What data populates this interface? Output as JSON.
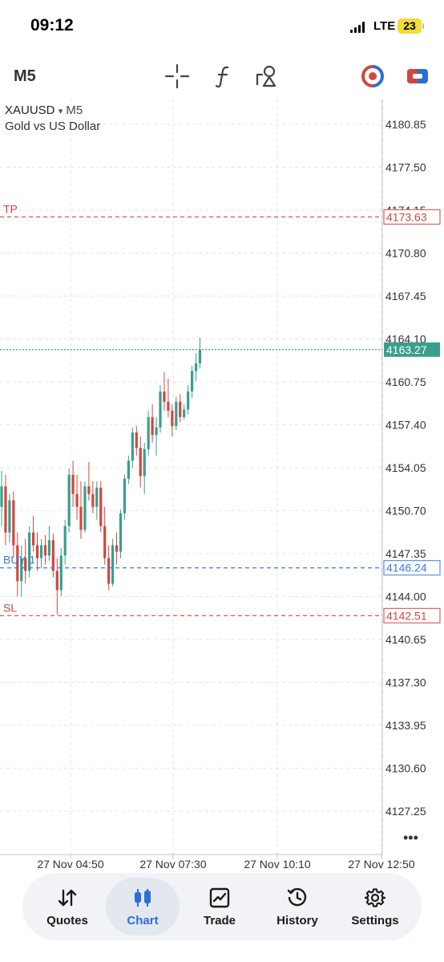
{
  "status_bar": {
    "time": "09:12",
    "network": "LTE",
    "battery": "23"
  },
  "toolbar": {
    "timeframe": "M5",
    "icons": [
      "crosshair-icon",
      "indicators-f-icon",
      "objects-icon",
      "one-click-trading-icon",
      "order-icon"
    ]
  },
  "symbol": {
    "ticker": "XAUUSD",
    "dropdown_glyph": "▾",
    "timeframe": "M5",
    "description": "Gold vs US Dollar"
  },
  "chart_data": {
    "type": "candlestick",
    "symbol": "XAUUSD",
    "timeframe": "M5",
    "y_ticks": [
      "4180.85",
      "4177.50",
      "4174.15",
      "4170.80",
      "4167.45",
      "4164.10",
      "4160.75",
      "4157.40",
      "4154.05",
      "4150.70",
      "4147.35",
      "4144.00",
      "4140.65",
      "4137.30",
      "4133.95",
      "4130.60",
      "4127.25"
    ],
    "x_ticks": [
      "27 Nov 04:50",
      "27 Nov 07:30",
      "27 Nov 10:10",
      "27 Nov 12:50"
    ],
    "ylim": [
      4125.5,
      4183.0
    ],
    "grid": true,
    "levels": [
      {
        "label": "TP",
        "price": 4173.63,
        "price_text": "4173.63",
        "color": "#d0473f"
      },
      {
        "label": "BUY 1",
        "price": 4146.24,
        "price_text": "4146.24",
        "color": "#3b7bd8"
      },
      {
        "label": "SL",
        "price": 4142.51,
        "price_text": "4142.51",
        "color": "#d0473f"
      }
    ],
    "current_price": {
      "value": 4163.27,
      "text": "4163.27",
      "color": "#3a9e8c"
    },
    "candles": [
      {
        "o": 4151.0,
        "h": 4153.8,
        "l": 4149.5,
        "c": 4152.6
      },
      {
        "o": 4152.6,
        "h": 4153.5,
        "l": 4148.0,
        "c": 4149.0
      },
      {
        "o": 4149.0,
        "h": 4152.0,
        "l": 4148.2,
        "c": 4151.5
      },
      {
        "o": 4151.5,
        "h": 4152.2,
        "l": 4147.0,
        "c": 4148.0
      },
      {
        "o": 4148.0,
        "h": 4149.0,
        "l": 4144.0,
        "c": 4145.2
      },
      {
        "o": 4145.2,
        "h": 4148.0,
        "l": 4144.0,
        "c": 4147.0
      },
      {
        "o": 4147.0,
        "h": 4148.5,
        "l": 4145.0,
        "c": 4146.0
      },
      {
        "o": 4146.0,
        "h": 4149.5,
        "l": 4145.5,
        "c": 4149.0
      },
      {
        "o": 4149.0,
        "h": 4150.3,
        "l": 4147.5,
        "c": 4148.0
      },
      {
        "o": 4148.0,
        "h": 4149.0,
        "l": 4146.0,
        "c": 4147.0
      },
      {
        "o": 4147.0,
        "h": 4148.5,
        "l": 4146.2,
        "c": 4148.0
      },
      {
        "o": 4148.0,
        "h": 4148.8,
        "l": 4146.5,
        "c": 4147.2
      },
      {
        "o": 4147.2,
        "h": 4149.5,
        "l": 4146.8,
        "c": 4148.4
      },
      {
        "o": 4148.4,
        "h": 4148.9,
        "l": 4145.5,
        "c": 4146.0
      },
      {
        "o": 4146.0,
        "h": 4147.0,
        "l": 4142.6,
        "c": 4144.5
      },
      {
        "o": 4144.5,
        "h": 4147.8,
        "l": 4144.0,
        "c": 4147.2
      },
      {
        "o": 4147.2,
        "h": 4150.0,
        "l": 4146.5,
        "c": 4149.5
      },
      {
        "o": 4149.5,
        "h": 4154.0,
        "l": 4149.0,
        "c": 4153.5
      },
      {
        "o": 4153.5,
        "h": 4154.6,
        "l": 4151.0,
        "c": 4152.0
      },
      {
        "o": 4152.0,
        "h": 4153.5,
        "l": 4150.0,
        "c": 4151.0
      },
      {
        "o": 4151.0,
        "h": 4153.0,
        "l": 4148.5,
        "c": 4149.2
      },
      {
        "o": 4149.2,
        "h": 4153.0,
        "l": 4149.0,
        "c": 4152.6
      },
      {
        "o": 4152.6,
        "h": 4154.5,
        "l": 4151.5,
        "c": 4152.0
      },
      {
        "o": 4152.0,
        "h": 4153.0,
        "l": 4150.5,
        "c": 4151.0
      },
      {
        "o": 4151.0,
        "h": 4153.0,
        "l": 4150.0,
        "c": 4152.5
      },
      {
        "o": 4152.5,
        "h": 4153.0,
        "l": 4149.0,
        "c": 4149.5
      },
      {
        "o": 4149.5,
        "h": 4151.0,
        "l": 4146.5,
        "c": 4147.0
      },
      {
        "o": 4147.0,
        "h": 4148.0,
        "l": 4144.5,
        "c": 4145.0
      },
      {
        "o": 4145.0,
        "h": 4148.5,
        "l": 4144.8,
        "c": 4148.0
      },
      {
        "o": 4148.0,
        "h": 4149.0,
        "l": 4146.5,
        "c": 4147.5
      },
      {
        "o": 4147.5,
        "h": 4150.8,
        "l": 4147.0,
        "c": 4150.5
      },
      {
        "o": 4150.5,
        "h": 4153.5,
        "l": 4150.0,
        "c": 4153.2
      },
      {
        "o": 4153.2,
        "h": 4155.0,
        "l": 4152.8,
        "c": 4154.6
      },
      {
        "o": 4154.6,
        "h": 4157.2,
        "l": 4154.0,
        "c": 4156.8
      },
      {
        "o": 4156.8,
        "h": 4157.3,
        "l": 4155.0,
        "c": 4155.6
      },
      {
        "o": 4155.6,
        "h": 4156.5,
        "l": 4152.5,
        "c": 4153.4
      },
      {
        "o": 4153.4,
        "h": 4156.0,
        "l": 4152.0,
        "c": 4155.5
      },
      {
        "o": 4155.5,
        "h": 4158.5,
        "l": 4155.0,
        "c": 4158.0
      },
      {
        "o": 4158.0,
        "h": 4159.0,
        "l": 4156.0,
        "c": 4156.6
      },
      {
        "o": 4156.6,
        "h": 4158.0,
        "l": 4155.0,
        "c": 4157.2
      },
      {
        "o": 4157.2,
        "h": 4160.5,
        "l": 4156.8,
        "c": 4160.0
      },
      {
        "o": 4160.0,
        "h": 4161.5,
        "l": 4158.5,
        "c": 4159.2
      },
      {
        "o": 4159.2,
        "h": 4161.0,
        "l": 4158.0,
        "c": 4158.5
      },
      {
        "o": 4158.5,
        "h": 4159.0,
        "l": 4156.5,
        "c": 4157.3
      },
      {
        "o": 4157.3,
        "h": 4159.6,
        "l": 4157.0,
        "c": 4159.2
      },
      {
        "o": 4159.2,
        "h": 4159.8,
        "l": 4157.6,
        "c": 4158.0
      },
      {
        "o": 4158.0,
        "h": 4159.0,
        "l": 4157.8,
        "c": 4158.6
      },
      {
        "o": 4158.6,
        "h": 4160.5,
        "l": 4158.2,
        "c": 4160.0
      },
      {
        "o": 4160.0,
        "h": 4162.0,
        "l": 4159.5,
        "c": 4161.6
      },
      {
        "o": 4161.6,
        "h": 4163.0,
        "l": 4160.8,
        "c": 4162.2
      },
      {
        "o": 4162.2,
        "h": 4164.2,
        "l": 4161.8,
        "c": 4163.27
      }
    ]
  },
  "more_glyph": "•••",
  "bottom_nav": [
    {
      "label": "Quotes",
      "icon": "quotes-arrows-icon",
      "active": false
    },
    {
      "label": "Chart",
      "icon": "candles-icon",
      "active": true
    },
    {
      "label": "Trade",
      "icon": "trade-chart-icon",
      "active": false
    },
    {
      "label": "History",
      "icon": "history-clock-icon",
      "active": false
    },
    {
      "label": "Settings",
      "icon": "settings-gear-icon",
      "active": false
    }
  ],
  "colors": {
    "bull": "#3a9e8c",
    "bear": "#d0473f",
    "accent": "#2b6fd6"
  }
}
